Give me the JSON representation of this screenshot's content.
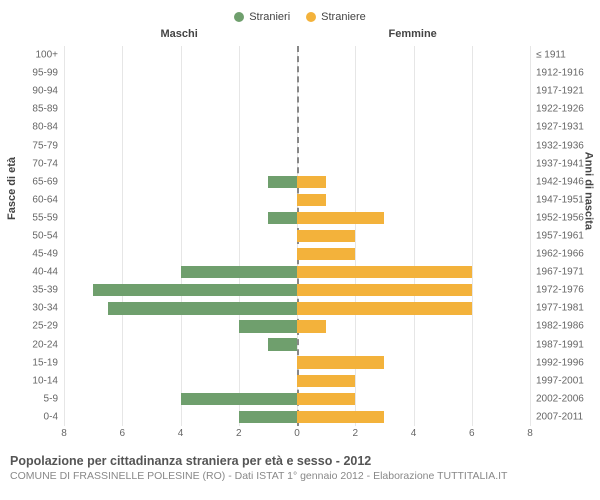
{
  "legend": {
    "male": {
      "label": "Stranieri",
      "color": "#6f9f6d"
    },
    "female": {
      "label": "Straniere",
      "color": "#f3b23b"
    }
  },
  "headers": {
    "left": "Maschi",
    "right": "Femmine"
  },
  "axis_titles": {
    "left": "Fasce di età",
    "right": "Anni di nascita"
  },
  "xaxis": {
    "max": 8,
    "ticks": [
      8,
      6,
      4,
      2,
      0,
      2,
      4,
      6,
      8
    ]
  },
  "plot": {
    "grid_color": "#e6e6e6",
    "center_line_color": "#888888",
    "background": "#ffffff"
  },
  "rows": [
    {
      "age": "100+",
      "birth": "≤ 1911",
      "m": 0,
      "f": 0
    },
    {
      "age": "95-99",
      "birth": "1912-1916",
      "m": 0,
      "f": 0
    },
    {
      "age": "90-94",
      "birth": "1917-1921",
      "m": 0,
      "f": 0
    },
    {
      "age": "85-89",
      "birth": "1922-1926",
      "m": 0,
      "f": 0
    },
    {
      "age": "80-84",
      "birth": "1927-1931",
      "m": 0,
      "f": 0
    },
    {
      "age": "75-79",
      "birth": "1932-1936",
      "m": 0,
      "f": 0
    },
    {
      "age": "70-74",
      "birth": "1937-1941",
      "m": 0,
      "f": 0
    },
    {
      "age": "65-69",
      "birth": "1942-1946",
      "m": 1,
      "f": 1
    },
    {
      "age": "60-64",
      "birth": "1947-1951",
      "m": 0,
      "f": 1
    },
    {
      "age": "55-59",
      "birth": "1952-1956",
      "m": 1,
      "f": 3
    },
    {
      "age": "50-54",
      "birth": "1957-1961",
      "m": 0,
      "f": 2
    },
    {
      "age": "45-49",
      "birth": "1962-1966",
      "m": 0,
      "f": 2
    },
    {
      "age": "40-44",
      "birth": "1967-1971",
      "m": 4,
      "f": 6
    },
    {
      "age": "35-39",
      "birth": "1972-1976",
      "m": 7,
      "f": 6
    },
    {
      "age": "30-34",
      "birth": "1977-1981",
      "m": 6.5,
      "f": 6
    },
    {
      "age": "25-29",
      "birth": "1982-1986",
      "m": 2,
      "f": 1
    },
    {
      "age": "20-24",
      "birth": "1987-1991",
      "m": 1,
      "f": 0
    },
    {
      "age": "15-19",
      "birth": "1992-1996",
      "m": 0,
      "f": 3
    },
    {
      "age": "10-14",
      "birth": "1997-2001",
      "m": 0,
      "f": 2
    },
    {
      "age": "5-9",
      "birth": "2002-2006",
      "m": 4,
      "f": 2
    },
    {
      "age": "0-4",
      "birth": "2007-2011",
      "m": 2,
      "f": 3
    }
  ],
  "caption": {
    "title": "Popolazione per cittadinanza straniera per età e sesso - 2012",
    "sub": "COMUNE DI FRASSINELLE POLESINE (RO) - Dati ISTAT 1° gennaio 2012 - Elaborazione TUTTITALIA.IT"
  }
}
